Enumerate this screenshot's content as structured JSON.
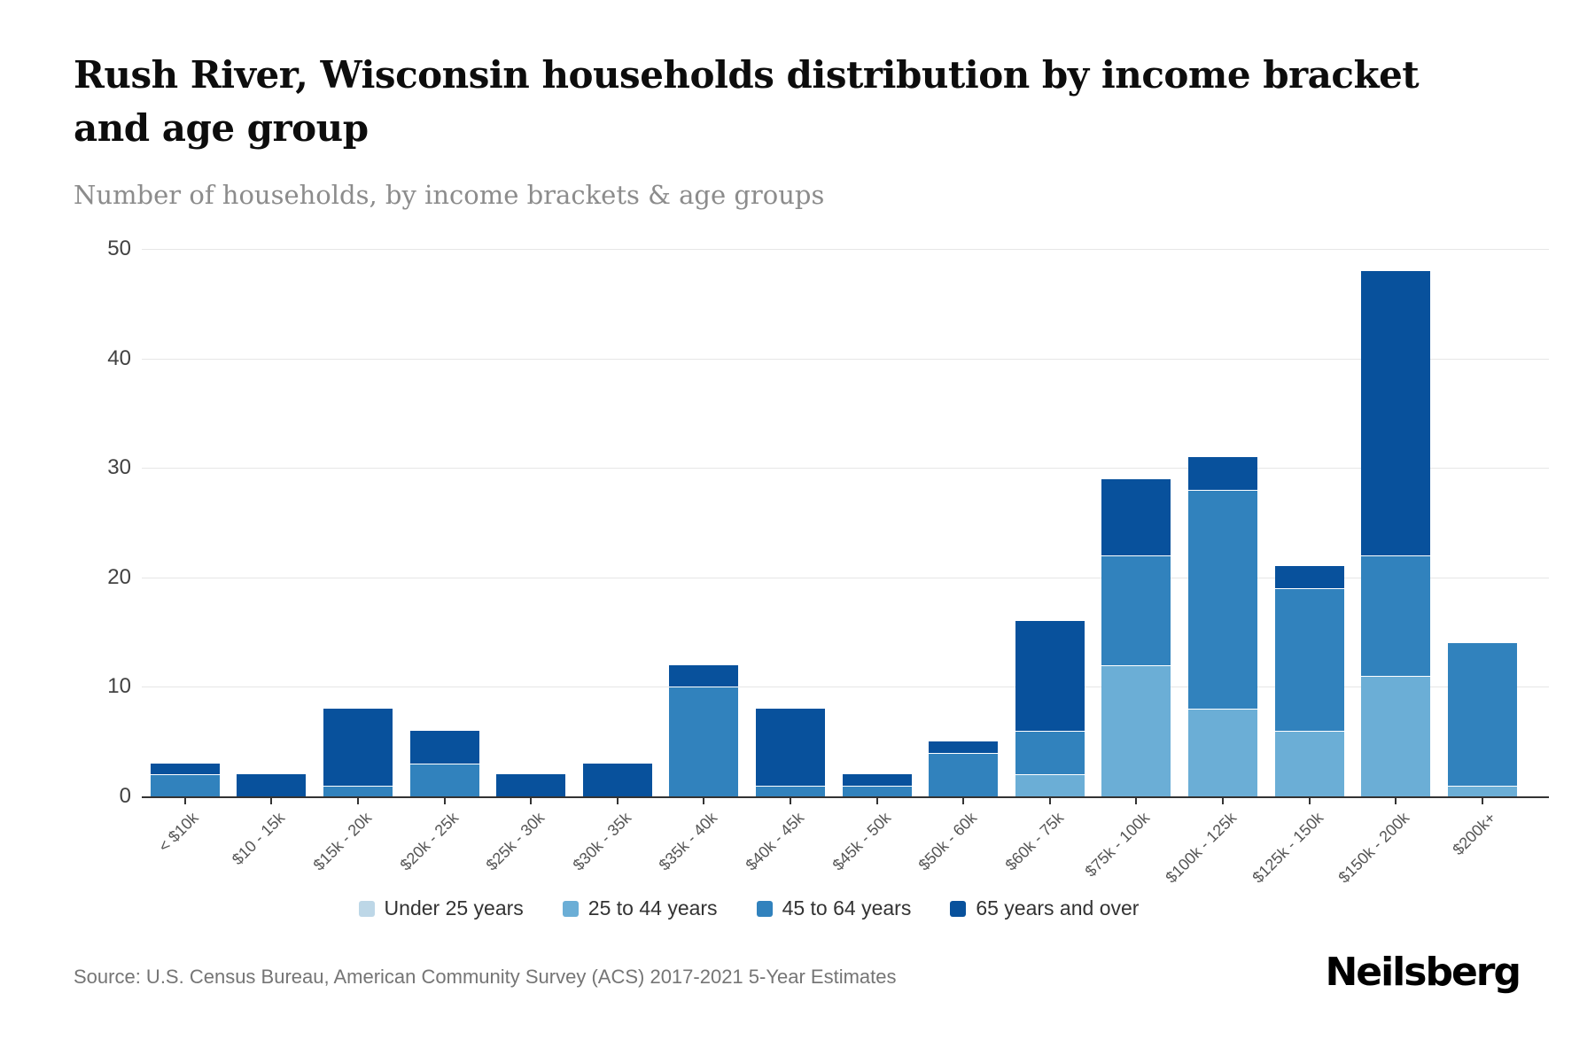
{
  "header": {
    "title": "Rush River, Wisconsin households distribution by income bracket and age group",
    "subtitle": "Number of households, by income brackets & age groups"
  },
  "chart_data": {
    "type": "bar",
    "stacked": true,
    "categories": [
      "< $10k",
      "$10 - 15k",
      "$15k - 20k",
      "$20k - 25k",
      "$25k - 30k",
      "$30k - 35k",
      "$35k - 40k",
      "$40k - 45k",
      "$45k - 50k",
      "$50k - 60k",
      "$60k - 75k",
      "$75k - 100k",
      "$100k - 125k",
      "$125k - 150k",
      "$150k - 200k",
      "$200k+"
    ],
    "series": [
      {
        "name": "Under 25 years",
        "color": "#bdd7e7",
        "values": [
          0,
          0,
          0,
          0,
          0,
          0,
          0,
          0,
          0,
          0,
          0,
          0,
          0,
          0,
          0,
          0
        ]
      },
      {
        "name": "25 to 44 years",
        "color": "#6baed6",
        "values": [
          0,
          0,
          0,
          0,
          0,
          0,
          0,
          0,
          0,
          0,
          2,
          12,
          8,
          6,
          11,
          1
        ]
      },
      {
        "name": "45 to 64 years",
        "color": "#3182bd",
        "values": [
          2,
          0,
          1,
          3,
          0,
          0,
          10,
          1,
          1,
          4,
          4,
          10,
          20,
          13,
          11,
          13
        ]
      },
      {
        "name": "65 years and over",
        "color": "#08519c",
        "values": [
          1,
          2,
          7,
          3,
          2,
          3,
          2,
          7,
          1,
          1,
          10,
          7,
          3,
          2,
          26,
          0
        ]
      }
    ],
    "totals": [
      3,
      2,
      8,
      6,
      2,
      3,
      12,
      8,
      2,
      5,
      16,
      29,
      31,
      21,
      48,
      14
    ],
    "ylabel": "",
    "xlabel": "",
    "ylim": [
      0,
      50
    ],
    "yticks": [
      0,
      10,
      20,
      30,
      40,
      50
    ],
    "grid": "horizontal",
    "legend_position": "bottom"
  },
  "footer": {
    "source": "Source: U.S. Census Bureau, American Community Survey (ACS) 2017-2021 5-Year Estimates",
    "logo": "Neilsberg"
  }
}
